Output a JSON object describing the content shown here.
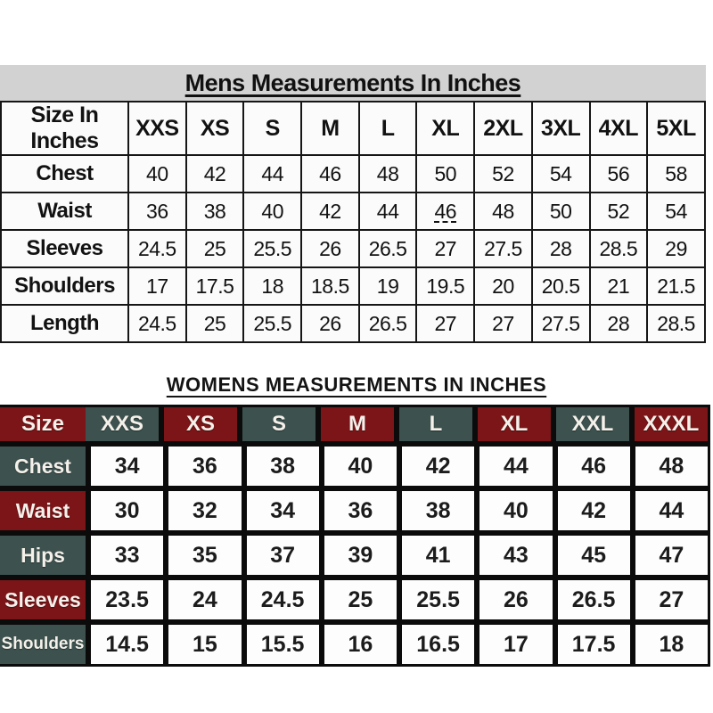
{
  "mens": {
    "title": "Mens Measurements In Inches",
    "band_color": "#d2d2d2",
    "header": [
      "Size In Inches",
      "XXS",
      "XS",
      "S",
      "M",
      "L",
      "XL",
      "2XL",
      "3XL",
      "4XL",
      "5XL"
    ],
    "rows": [
      {
        "label": "Chest",
        "values": [
          "40",
          "42",
          "44",
          "46",
          "48",
          "50",
          "52",
          "54",
          "56",
          "58"
        ]
      },
      {
        "label": "Waist",
        "values": [
          "36",
          "38",
          "40",
          "42",
          "44",
          "46",
          "48",
          "50",
          "52",
          "54"
        ]
      },
      {
        "label": "Sleeves",
        "values": [
          "24.5",
          "25",
          "25.5",
          "26",
          "26.5",
          "27",
          "27.5",
          "28",
          "28.5",
          "29"
        ]
      },
      {
        "label": "Shoulders",
        "values": [
          "17",
          "17.5",
          "18",
          "18.5",
          "19",
          "19.5",
          "20",
          "20.5",
          "21",
          "21.5"
        ]
      },
      {
        "label": "Length",
        "values": [
          "24.5",
          "25",
          "25.5",
          "26",
          "26.5",
          "27",
          "27",
          "27.5",
          "28",
          "28.5"
        ]
      }
    ],
    "underline_cell": {
      "row": 1,
      "col": 5
    }
  },
  "womens": {
    "title": "WOMENS MEASUREMENTS IN INCHES",
    "colors": {
      "maroon": "#7b1518",
      "teal": "#3d524f",
      "grid": "#0b0b0b",
      "cell": "#fdfdfd"
    },
    "header": [
      "Size",
      "XXS",
      "XS",
      "S",
      "M",
      "L",
      "XL",
      "XXL",
      "XXXL"
    ],
    "rows": [
      {
        "label": "Chest",
        "values": [
          "34",
          "36",
          "38",
          "40",
          "42",
          "44",
          "46",
          "48"
        ]
      },
      {
        "label": "Waist",
        "values": [
          "30",
          "32",
          "34",
          "36",
          "38",
          "40",
          "42",
          "44"
        ]
      },
      {
        "label": "Hips",
        "values": [
          "33",
          "35",
          "37",
          "39",
          "41",
          "43",
          "45",
          "47"
        ]
      },
      {
        "label": "Sleeves",
        "values": [
          "23.5",
          "24",
          "24.5",
          "25",
          "25.5",
          "26",
          "26.5",
          "27"
        ]
      },
      {
        "label": "Shoulders",
        "values": [
          "14.5",
          "15",
          "15.5",
          "16",
          "16.5",
          "17",
          "17.5",
          "18"
        ]
      }
    ]
  }
}
